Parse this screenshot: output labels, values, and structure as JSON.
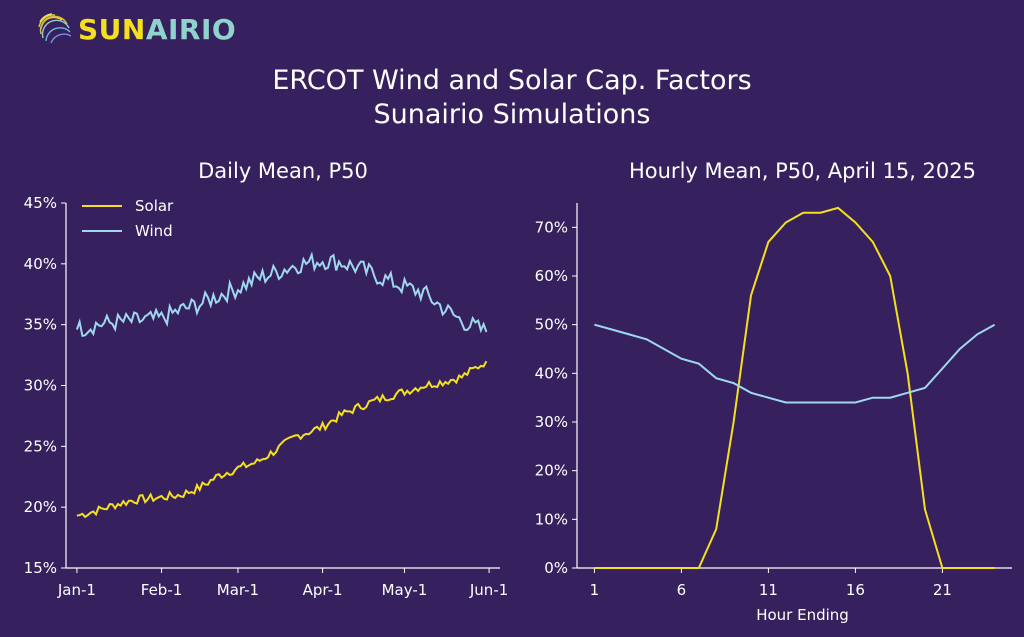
{
  "brand": {
    "name_part1": "SUN",
    "name_part2": "AIRIO",
    "colors": {
      "yellow": "#f4e01c",
      "teal": "#8fd3cc"
    }
  },
  "header": {
    "title": "ERCOT Wind and Solar Cap. Factors",
    "subtitle": "Sunairio Simulations"
  },
  "colors": {
    "background": "#36215e",
    "solar": "#f4e01c",
    "wind": "#9fd8ee",
    "axis": "#ffffff"
  },
  "chart_data": [
    {
      "type": "line",
      "title": "Daily Mean, P50",
      "xlabel": "",
      "ylabel": "",
      "ylim": [
        15,
        45
      ],
      "y_unit": "%",
      "y_ticks": [
        "15%",
        "20%",
        "25%",
        "30%",
        "35%",
        "40%",
        "45%"
      ],
      "x_ticks": [
        "Jan-1",
        "Feb-1",
        "Mar-1",
        "Apr-1",
        "May-1",
        "Jun-1"
      ],
      "x_tick_dates": [
        "2025-01-01",
        "2025-02-01",
        "2025-03-01",
        "2025-04-01",
        "2025-05-01",
        "2025-06-01"
      ],
      "legend_position": "top-left",
      "series": [
        {
          "name": "Solar",
          "color": "#f4e01c",
          "x": [
            "2025-01-01",
            "2025-01-08",
            "2025-01-15",
            "2025-01-22",
            "2025-02-01",
            "2025-02-08",
            "2025-02-15",
            "2025-02-22",
            "2025-03-01",
            "2025-03-08",
            "2025-03-15",
            "2025-03-22",
            "2025-04-01",
            "2025-04-08",
            "2025-04-15",
            "2025-04-22",
            "2025-05-01",
            "2025-05-08",
            "2025-05-15",
            "2025-05-22",
            "2025-05-31"
          ],
          "y": [
            19.3,
            19.7,
            20.2,
            20.6,
            20.8,
            21.0,
            21.6,
            22.6,
            23.2,
            23.7,
            24.7,
            25.8,
            26.6,
            27.6,
            28.3,
            28.9,
            29.5,
            30.0,
            30.3,
            30.7,
            32.0
          ]
        },
        {
          "name": "Wind",
          "color": "#9fd8ee",
          "x": [
            "2025-01-01",
            "2025-01-08",
            "2025-01-15",
            "2025-01-22",
            "2025-02-01",
            "2025-02-08",
            "2025-02-15",
            "2025-02-22",
            "2025-03-01",
            "2025-03-08",
            "2025-03-15",
            "2025-03-22",
            "2025-04-01",
            "2025-04-08",
            "2025-04-15",
            "2025-04-22",
            "2025-05-01",
            "2025-05-08",
            "2025-05-15",
            "2025-05-22",
            "2025-05-31"
          ],
          "y": [
            34.6,
            35.0,
            35.2,
            35.3,
            35.5,
            36.2,
            36.7,
            37.4,
            38.0,
            38.8,
            39.3,
            39.9,
            40.3,
            40.1,
            39.6,
            38.9,
            38.1,
            37.6,
            36.4,
            35.3,
            34.4
          ]
        }
      ]
    },
    {
      "type": "line",
      "title": "Hourly Mean, P50, April 15, 2025",
      "xlabel": "Hour Ending",
      "ylabel": "",
      "xlim": [
        0,
        25
      ],
      "ylim": [
        0,
        75
      ],
      "y_unit": "%",
      "x_ticks": [
        "1",
        "6",
        "11",
        "16",
        "21"
      ],
      "x_tick_values": [
        1,
        6,
        11,
        16,
        21
      ],
      "y_ticks": [
        "0%",
        "10%",
        "20%",
        "30%",
        "40%",
        "50%",
        "60%",
        "70%"
      ],
      "y_tick_values": [
        0,
        10,
        20,
        30,
        40,
        50,
        60,
        70
      ],
      "series": [
        {
          "color": "#f4e01c",
          "x": [
            1,
            2,
            3,
            4,
            5,
            6,
            7,
            8,
            9,
            10,
            11,
            12,
            13,
            14,
            15,
            16,
            17,
            18,
            19,
            20,
            21,
            22,
            23,
            24
          ],
          "y": [
            0,
            0,
            0,
            0,
            0,
            0,
            0,
            8,
            30,
            56,
            67,
            71,
            73,
            73,
            74,
            71,
            67,
            60,
            40,
            12,
            0,
            0,
            0,
            0
          ]
        },
        {
          "color": "#9fd8ee",
          "x": [
            1,
            2,
            3,
            4,
            5,
            6,
            7,
            8,
            9,
            10,
            11,
            12,
            13,
            14,
            15,
            16,
            17,
            18,
            19,
            20,
            21,
            22,
            23,
            24
          ],
          "y": [
            50,
            49,
            48,
            47,
            45,
            43,
            42,
            39,
            38,
            36,
            35,
            34,
            34,
            34,
            34,
            34,
            35,
            35,
            36,
            37,
            41,
            45,
            48,
            50
          ]
        }
      ]
    }
  ]
}
